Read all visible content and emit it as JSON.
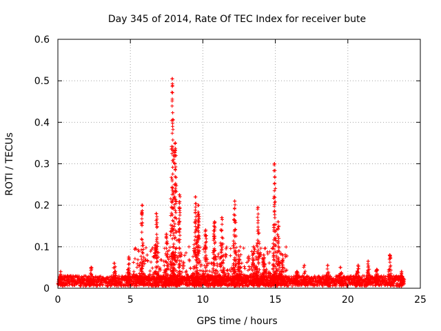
{
  "chart_data": {
    "type": "scatter",
    "title": "Day 345 of 2014, Rate Of TEC Index for receiver bute",
    "xlabel": "GPS time / hours",
    "ylabel": "ROTI / TECUs",
    "xlim": [
      0,
      25
    ],
    "ylim": [
      0,
      0.6
    ],
    "xticks": [
      0,
      5,
      10,
      15,
      20,
      25
    ],
    "xtick_labels": [
      "0",
      "5",
      "10",
      "15",
      "20",
      "25"
    ],
    "yticks": [
      0,
      0.1,
      0.2,
      0.3,
      0.4,
      0.5,
      0.6
    ],
    "ytick_labels": [
      "0",
      "0.1",
      "0.2",
      "0.3",
      "0.4",
      "0.5",
      "0.6"
    ],
    "grid": true,
    "marker": "+",
    "series": [
      {
        "name": "ROTI",
        "color": "#ff0000",
        "baseline_range": [
          0.005,
          0.03
        ],
        "x_range": [
          0,
          23.9
        ],
        "peaks": [
          {
            "x": 0.2,
            "y": 0.04
          },
          {
            "x": 2.3,
            "y": 0.05
          },
          {
            "x": 3.9,
            "y": 0.06
          },
          {
            "x": 4.9,
            "y": 0.075
          },
          {
            "x": 5.8,
            "y": 0.2
          },
          {
            "x": 6.8,
            "y": 0.18
          },
          {
            "x": 7.5,
            "y": 0.13
          },
          {
            "x": 7.9,
            "y": 0.505
          },
          {
            "x": 8.1,
            "y": 0.35
          },
          {
            "x": 8.4,
            "y": 0.225
          },
          {
            "x": 9.5,
            "y": 0.22
          },
          {
            "x": 9.7,
            "y": 0.2
          },
          {
            "x": 10.2,
            "y": 0.14
          },
          {
            "x": 10.8,
            "y": 0.16
          },
          {
            "x": 11.3,
            "y": 0.17
          },
          {
            "x": 12.2,
            "y": 0.21
          },
          {
            "x": 12.5,
            "y": 0.09
          },
          {
            "x": 13.5,
            "y": 0.1
          },
          {
            "x": 13.8,
            "y": 0.195
          },
          {
            "x": 14.2,
            "y": 0.08
          },
          {
            "x": 14.95,
            "y": 0.3
          },
          {
            "x": 15.2,
            "y": 0.16
          },
          {
            "x": 15.5,
            "y": 0.08
          },
          {
            "x": 16.5,
            "y": 0.04
          },
          {
            "x": 17.0,
            "y": 0.055
          },
          {
            "x": 18.6,
            "y": 0.055
          },
          {
            "x": 19.5,
            "y": 0.05
          },
          {
            "x": 20.7,
            "y": 0.055
          },
          {
            "x": 21.4,
            "y": 0.065
          },
          {
            "x": 22.0,
            "y": 0.045
          },
          {
            "x": 22.9,
            "y": 0.08
          },
          {
            "x": 23.7,
            "y": 0.04
          }
        ]
      }
    ]
  }
}
